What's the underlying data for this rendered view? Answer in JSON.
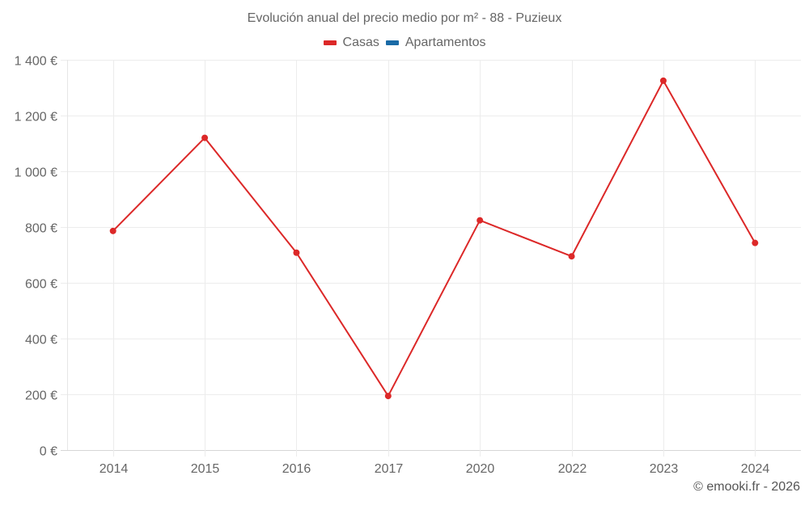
{
  "header": {
    "title": "Evolución anual del precio medio por m² - 88 - Puzieux"
  },
  "legend": [
    {
      "label": "Casas",
      "color": "#dc2828"
    },
    {
      "label": "Apartamentos",
      "color": "#1a6aa6"
    }
  ],
  "footer": {
    "credit": "© emooki.fr - 2026"
  },
  "chart_data": {
    "type": "line",
    "title": "Evolución anual del precio medio por m² - 88 - Puzieux",
    "xlabel": "",
    "ylabel": "",
    "categories": [
      "2014",
      "2015",
      "2016",
      "2017",
      "2020",
      "2022",
      "2023",
      "2024"
    ],
    "series": [
      {
        "name": "Casas",
        "color": "#dc2828",
        "values": [
          786,
          1120,
          708,
          194,
          824,
          695,
          1325,
          743
        ]
      },
      {
        "name": "Apartamentos",
        "color": "#1a6aa6",
        "values": []
      }
    ],
    "yticks": [
      "0 €",
      "200 €",
      "400 €",
      "600 €",
      "800 €",
      "1 000 €",
      "1 200 €",
      "1 400 €"
    ],
    "ylim": [
      0,
      1400
    ],
    "grid": true,
    "legend_position": "top"
  }
}
